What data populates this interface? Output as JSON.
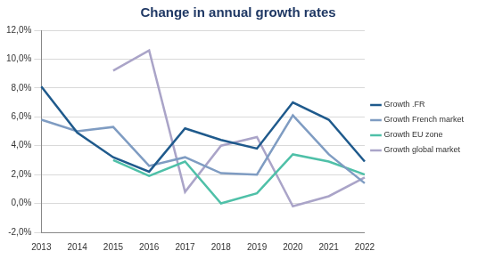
{
  "chart_data": {
    "type": "line",
    "title": "Change in annual growth rates",
    "categories": [
      "2013",
      "2014",
      "2015",
      "2016",
      "2017",
      "2018",
      "2019",
      "2020",
      "2021",
      "2022"
    ],
    "series": [
      {
        "name": "Growth .FR",
        "color": "#1f5a8c",
        "values": [
          8.1,
          4.9,
          3.2,
          2.2,
          5.2,
          4.4,
          3.8,
          7.0,
          5.8,
          2.9
        ]
      },
      {
        "name": "Growth French market",
        "color": "#7f9cc2",
        "values": [
          5.8,
          5.0,
          5.3,
          2.6,
          3.2,
          2.1,
          2.0,
          6.1,
          3.4,
          1.4
        ]
      },
      {
        "name": "Growth EU zone",
        "color": "#4fc0a8",
        "values": [
          null,
          null,
          3.0,
          1.9,
          2.9,
          0.0,
          0.7,
          3.4,
          2.9,
          2.0
        ]
      },
      {
        "name": "Growth global market",
        "color": "#aaa4c8",
        "values": [
          null,
          null,
          9.2,
          10.6,
          0.8,
          4.0,
          4.6,
          -0.2,
          0.5,
          1.8
        ]
      }
    ],
    "ylim": [
      -2,
      12
    ],
    "yticks": [
      {
        "value": -2,
        "label": "-2,0%"
      },
      {
        "value": 0,
        "label": "0,0%"
      },
      {
        "value": 2,
        "label": "2,0%"
      },
      {
        "value": 4,
        "label": "4,0%"
      },
      {
        "value": 6,
        "label": "6,0%"
      },
      {
        "value": 8,
        "label": "8,0%"
      },
      {
        "value": 10,
        "label": "10,0%"
      },
      {
        "value": 12,
        "label": "12,0%"
      }
    ],
    "grid": true,
    "legend": "right"
  }
}
